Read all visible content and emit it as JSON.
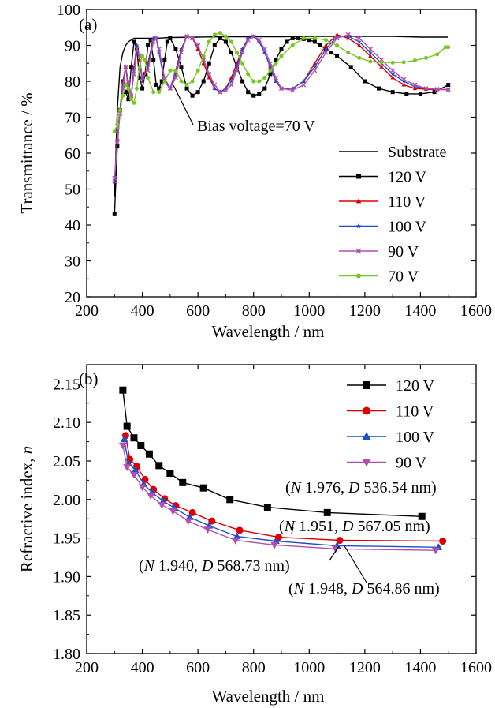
{
  "chart_data": [
    {
      "type": "line",
      "panel_label": "(a)",
      "xlabel": "Wavelength / nm",
      "ylabel": "Transmittance / %",
      "xlim": [
        200,
        1600
      ],
      "ylim": [
        20,
        100
      ],
      "xticks": [
        "200",
        "400",
        "600",
        "800",
        "1000",
        "1200",
        "1400",
        "1600"
      ],
      "yticks": [
        "20",
        "30",
        "40",
        "50",
        "60",
        "70",
        "80",
        "90",
        "100"
      ],
      "legend_position": "bottom-right",
      "annotation": "Bias voltage=70 V",
      "series": [
        {
          "name": "Substrate",
          "color": "#000000",
          "marker": "none",
          "x": [
            300,
            310,
            320,
            330,
            340,
            350,
            360,
            370,
            380,
            400,
            450,
            500,
            600,
            700,
            800,
            900,
            1000,
            1100,
            1200,
            1300,
            1400,
            1500
          ],
          "y": [
            48,
            72,
            84,
            88,
            90,
            91,
            91.5,
            92,
            92,
            92,
            92,
            92.2,
            92.3,
            92.4,
            92.4,
            92.4,
            92.5,
            92.5,
            92.5,
            92.5,
            92.3,
            92.3
          ]
        },
        {
          "name": "120 V",
          "color": "#000000",
          "marker": "square",
          "x": [
            300,
            310,
            320,
            330,
            340,
            350,
            360,
            370,
            380,
            390,
            400,
            410,
            420,
            430,
            440,
            450,
            460,
            470,
            480,
            490,
            500,
            520,
            540,
            560,
            580,
            600,
            620,
            640,
            660,
            680,
            700,
            720,
            740,
            760,
            780,
            800,
            820,
            840,
            860,
            880,
            900,
            920,
            940,
            960,
            980,
            1000,
            1020,
            1040,
            1060,
            1080,
            1100,
            1150,
            1200,
            1250,
            1300,
            1350,
            1400,
            1450,
            1500
          ],
          "y": [
            43,
            62,
            72,
            80,
            77,
            75,
            84,
            91,
            89,
            81,
            78,
            82,
            90,
            91.5,
            86,
            79,
            78,
            80,
            86,
            91,
            92,
            89,
            84,
            78,
            76,
            77,
            80,
            85,
            90,
            92,
            91,
            88,
            84,
            80,
            77,
            76,
            76.5,
            78,
            82,
            86,
            89,
            91,
            92,
            92,
            91.8,
            91.5,
            91,
            90,
            89,
            88,
            87,
            84,
            80,
            78,
            77,
            76.5,
            76.5,
            77,
            79
          ]
        },
        {
          "name": "110 V",
          "color": "#dd0000",
          "marker": "triangle",
          "x": [
            300,
            310,
            320,
            330,
            340,
            350,
            360,
            370,
            380,
            390,
            400,
            420,
            440,
            450,
            460,
            480,
            500,
            520,
            540,
            560,
            580,
            600,
            620,
            640,
            660,
            680,
            700,
            720,
            740,
            760,
            780,
            800,
            820,
            840,
            860,
            880,
            900,
            940,
            980,
            1020,
            1060,
            1100,
            1140,
            1180,
            1220,
            1260,
            1300,
            1340,
            1380,
            1420,
            1460,
            1500
          ],
          "y": [
            52,
            64,
            72,
            80,
            84,
            78,
            76,
            84,
            90,
            86,
            80,
            85,
            92,
            92,
            88,
            80,
            78,
            83,
            89,
            92.5,
            92,
            89,
            85,
            81,
            78,
            77,
            78,
            81,
            85,
            89,
            92,
            92.5,
            91,
            88,
            84,
            80,
            78,
            78,
            80,
            85,
            90,
            93,
            92,
            90,
            87,
            84,
            81,
            79,
            78,
            77.8,
            77.7,
            77.7
          ]
        },
        {
          "name": "100 V",
          "color": "#1f4fcc",
          "marker": "star",
          "x": [
            300,
            310,
            320,
            330,
            340,
            350,
            360,
            370,
            380,
            390,
            400,
            420,
            440,
            450,
            460,
            480,
            500,
            520,
            540,
            560,
            580,
            600,
            620,
            640,
            660,
            680,
            700,
            720,
            740,
            760,
            780,
            800,
            820,
            840,
            860,
            880,
            900,
            940,
            980,
            1020,
            1060,
            1100,
            1140,
            1180,
            1220,
            1260,
            1300,
            1340,
            1380,
            1420,
            1460,
            1500
          ],
          "y": [
            52,
            63,
            72,
            79,
            84,
            79,
            76,
            83,
            90,
            87,
            80,
            84,
            92,
            92,
            88,
            80,
            78,
            82,
            89,
            92.5,
            92,
            90,
            86,
            82,
            78,
            77,
            78,
            80,
            84,
            89,
            92,
            92.5,
            91,
            88,
            84,
            80,
            78,
            78,
            80,
            84,
            89,
            92.5,
            92.5,
            91,
            88,
            85,
            82,
            80,
            78.5,
            78,
            77.8,
            77.7
          ]
        },
        {
          "name": "90 V",
          "color": "#b04fb0",
          "marker": "x",
          "x": [
            300,
            310,
            320,
            330,
            340,
            350,
            360,
            370,
            380,
            390,
            400,
            420,
            440,
            450,
            460,
            480,
            500,
            520,
            540,
            560,
            580,
            600,
            620,
            640,
            660,
            680,
            700,
            720,
            740,
            760,
            780,
            800,
            820,
            840,
            860,
            880,
            900,
            940,
            980,
            1020,
            1060,
            1100,
            1140,
            1180,
            1220,
            1260,
            1300,
            1340,
            1380,
            1420,
            1460,
            1500
          ],
          "y": [
            53,
            63,
            71,
            78,
            84,
            80,
            76,
            82,
            89,
            87,
            81,
            83,
            91,
            92,
            89,
            81,
            78,
            81,
            88,
            92.5,
            92,
            90,
            86,
            82,
            79,
            77,
            77.5,
            79,
            83,
            88,
            91.5,
            92.5,
            91.5,
            89,
            85,
            81,
            78,
            77.5,
            79,
            83,
            88,
            92,
            93,
            92,
            89,
            86,
            83,
            80.5,
            79,
            78,
            77.8,
            77.7
          ]
        },
        {
          "name": "70 V",
          "color": "#77c720",
          "marker": "circle",
          "x": [
            300,
            310,
            320,
            330,
            340,
            350,
            360,
            370,
            380,
            390,
            400,
            410,
            420,
            440,
            460,
            480,
            500,
            520,
            540,
            560,
            580,
            600,
            620,
            640,
            660,
            680,
            700,
            720,
            740,
            760,
            780,
            800,
            820,
            840,
            860,
            880,
            900,
            940,
            980,
            1020,
            1060,
            1100,
            1140,
            1180,
            1220,
            1260,
            1300,
            1340,
            1380,
            1420,
            1460,
            1490,
            1500
          ],
          "y": [
            66,
            68,
            72,
            76,
            79,
            78,
            75,
            74,
            78,
            84,
            87,
            86,
            81,
            77,
            77,
            80,
            83,
            83,
            80,
            79,
            80,
            83,
            87,
            91,
            93,
            93.5,
            92.5,
            91,
            88,
            85,
            82,
            80,
            80,
            81,
            83,
            85,
            87,
            90,
            92,
            92,
            91.5,
            90,
            88,
            86.5,
            85.5,
            85.3,
            85.2,
            85.3,
            85.8,
            86.5,
            87.5,
            89.5,
            89.5
          ]
        }
      ]
    },
    {
      "type": "line",
      "panel_label": "(b)",
      "xlabel": "Wavelength / nm",
      "ylabel": "Refractive index, ",
      "ylabel_symbol": "n",
      "xlim": [
        200,
        1600
      ],
      "ylim": [
        1.8,
        2.175
      ],
      "xticks": [
        "200",
        "400",
        "600",
        "800",
        "1000",
        "1200",
        "1400",
        "1600"
      ],
      "yticks": [
        "1.80",
        "1.85",
        "1.90",
        "1.95",
        "2.00",
        "2.05",
        "2.10",
        "2.15"
      ],
      "legend_position": "top-right",
      "series": [
        {
          "name": "120 V",
          "color": "#000000",
          "marker": "square",
          "x": [
            330,
            345,
            370,
            395,
            425,
            460,
            500,
            545,
            620,
            715,
            850,
            1065,
            1405
          ],
          "y": [
            2.142,
            2.095,
            2.08,
            2.07,
            2.059,
            2.044,
            2.034,
            2.022,
            2.015,
            2.0,
            1.99,
            1.983,
            1.978
          ]
        },
        {
          "name": "110 V",
          "color": "#dd0000",
          "marker": "circle",
          "x": [
            340,
            355,
            380,
            410,
            440,
            480,
            520,
            580,
            650,
            750,
            890,
            1110,
            1480
          ],
          "y": [
            2.083,
            2.052,
            2.043,
            2.026,
            2.013,
            2.001,
            1.992,
            1.983,
            1.972,
            1.96,
            1.951,
            1.947,
            1.946
          ]
        },
        {
          "name": "100 V",
          "color": "#1f4fcc",
          "marker": "triangle",
          "x": [
            335,
            350,
            375,
            405,
            435,
            475,
            515,
            570,
            640,
            740,
            880,
            1100,
            1465
          ],
          "y": [
            2.078,
            2.047,
            2.038,
            2.02,
            2.009,
            1.998,
            1.989,
            1.977,
            1.966,
            1.952,
            1.946,
            1.94,
            1.938
          ]
        },
        {
          "name": "90 V",
          "color": "#b04fb0",
          "marker": "triangle-down",
          "x": [
            330,
            345,
            370,
            400,
            430,
            470,
            510,
            565,
            635,
            735,
            875,
            1095,
            1455
          ],
          "y": [
            2.07,
            2.042,
            2.032,
            2.016,
            2.005,
            1.993,
            1.985,
            1.972,
            1.961,
            1.947,
            1.941,
            1.936,
            1.934
          ]
        }
      ],
      "annotations": [
        {
          "prefix": "(",
          "symbol": "N",
          "mid": " 1.976, ",
          "symbol2": "D",
          "suffix": " 536.54 nm)"
        },
        {
          "prefix": "(",
          "symbol": "N",
          "mid": " 1.951, ",
          "symbol2": "D",
          "suffix": " 567.05 nm)"
        },
        {
          "prefix": "(",
          "symbol": "N",
          "mid": " 1.940, ",
          "symbol2": "D",
          "suffix": " 568.73 nm)"
        },
        {
          "prefix": "(",
          "symbol": "N",
          "mid": " 1.948, ",
          "symbol2": "D",
          "suffix": " 564.86 nm)"
        }
      ]
    }
  ]
}
